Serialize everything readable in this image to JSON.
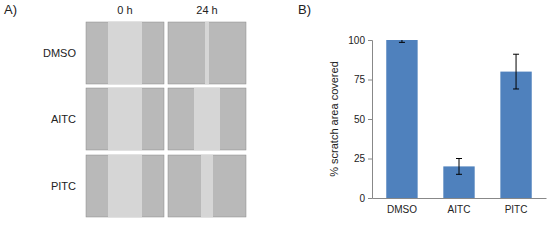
{
  "figure": {
    "panel_labels": [
      "A)",
      "B)"
    ]
  },
  "image_grid": {
    "columns": [
      "0 h",
      "24 h"
    ],
    "rows": [
      "DMSO",
      "AITC",
      "PITC"
    ]
  },
  "chart_data": {
    "type": "bar",
    "y_label": "% scratch area covered",
    "categories": [
      "DMSO",
      "AITC",
      "PITC"
    ],
    "values": [
      100,
      20,
      80
    ],
    "errors": [
      1.5,
      5,
      11
    ],
    "color": "#4f81bd",
    "ylim": [
      0,
      100
    ],
    "yticks": [
      0,
      25,
      50,
      75,
      100
    ],
    "grid": false
  }
}
